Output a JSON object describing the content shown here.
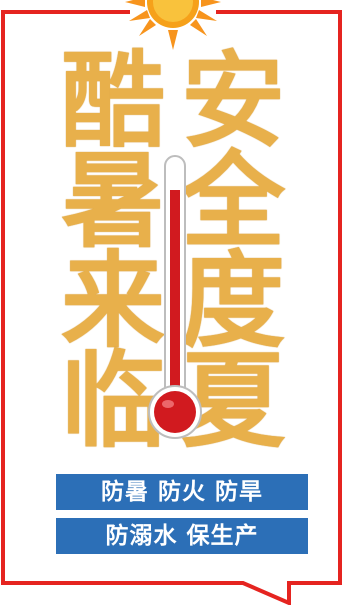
{
  "title": {
    "left_column": [
      "酷",
      "暑",
      "来",
      "临"
    ],
    "right_column": [
      "安",
      "全",
      "度",
      "夏"
    ]
  },
  "banners": [
    "防暑 防火 防旱",
    "防溺水 保生产"
  ],
  "colors": {
    "frame_red": "#e52420",
    "title_gold": "#e8b04b",
    "banner_blue": "#2c6fb7",
    "mercury_red": "#d11a1f",
    "sun_orange": "#f7941d"
  },
  "icons": [
    "sun-icon",
    "thermometer-icon"
  ]
}
